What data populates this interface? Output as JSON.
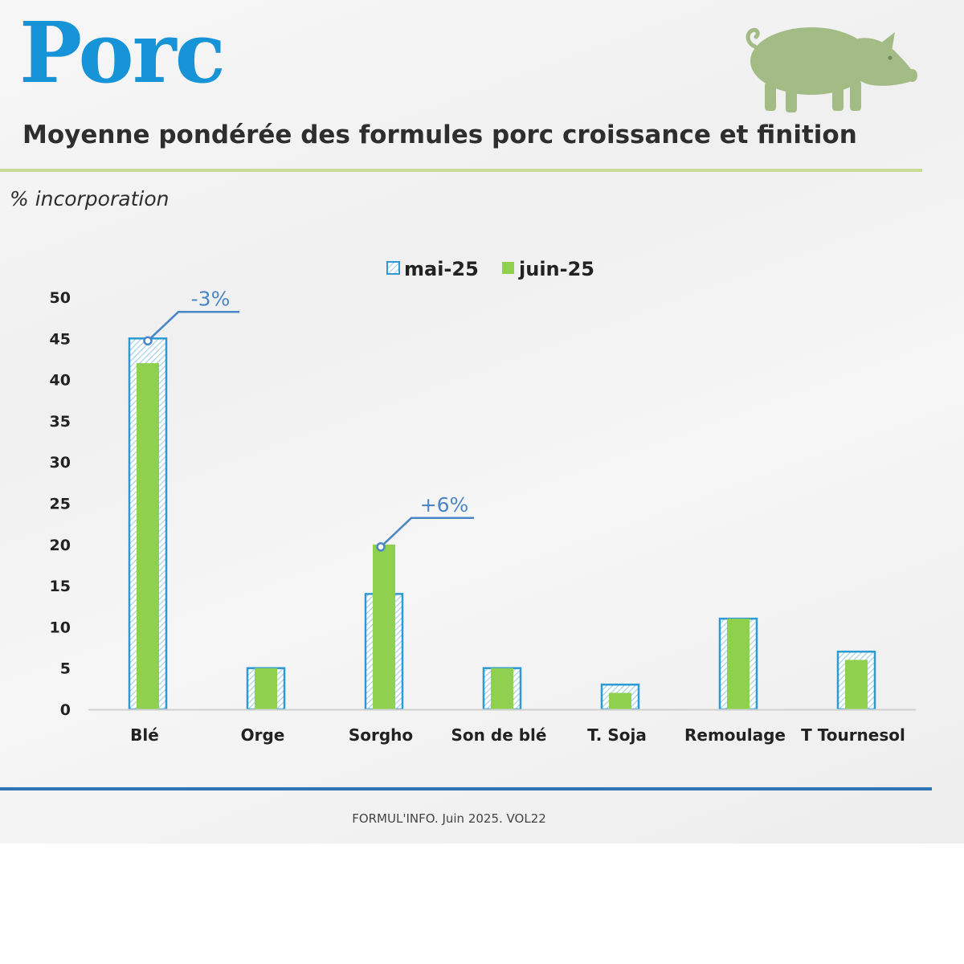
{
  "header": {
    "title": "Porc",
    "subtitle": "Moyenne pondérée des formules porc croissance et finition",
    "unit_label": "% incorporation",
    "pig_icon": "pig-icon"
  },
  "footer": {
    "text": "FORMUL'INFO. Juin 2025. VOL22"
  },
  "colors": {
    "title": "#1793d8",
    "mai_border": "#2c9ad4",
    "mai_hatch": "#9ccbe8",
    "juin": "#8fd14f",
    "callout": "#4a86c5",
    "pig": "#a3bc86",
    "rule_green": "#c8dc96",
    "rule_blue": "#2e75b6"
  },
  "chart_data": {
    "type": "bar",
    "title": "",
    "xlabel": "",
    "ylabel": "% incorporation",
    "ylim": [
      0,
      50
    ],
    "yticks": [
      "0",
      "5",
      "10",
      "15",
      "20",
      "25",
      "30",
      "35",
      "40",
      "45",
      "50"
    ],
    "grid": false,
    "legend_position": "top-center",
    "categories": [
      "Blé",
      "Orge",
      "Sorgho",
      "Son de blé",
      "T. Soja",
      "Remoulage",
      "T Tournesol"
    ],
    "series": [
      {
        "name": "mai-25",
        "values": [
          45,
          5,
          14,
          5,
          3,
          11,
          7
        ]
      },
      {
        "name": "juin-25",
        "values": [
          42,
          5,
          20,
          5,
          2,
          11,
          6
        ]
      }
    ],
    "annotations": [
      {
        "category": "Blé",
        "text": "-3%"
      },
      {
        "category": "Sorgho",
        "text": "+6%"
      }
    ]
  }
}
